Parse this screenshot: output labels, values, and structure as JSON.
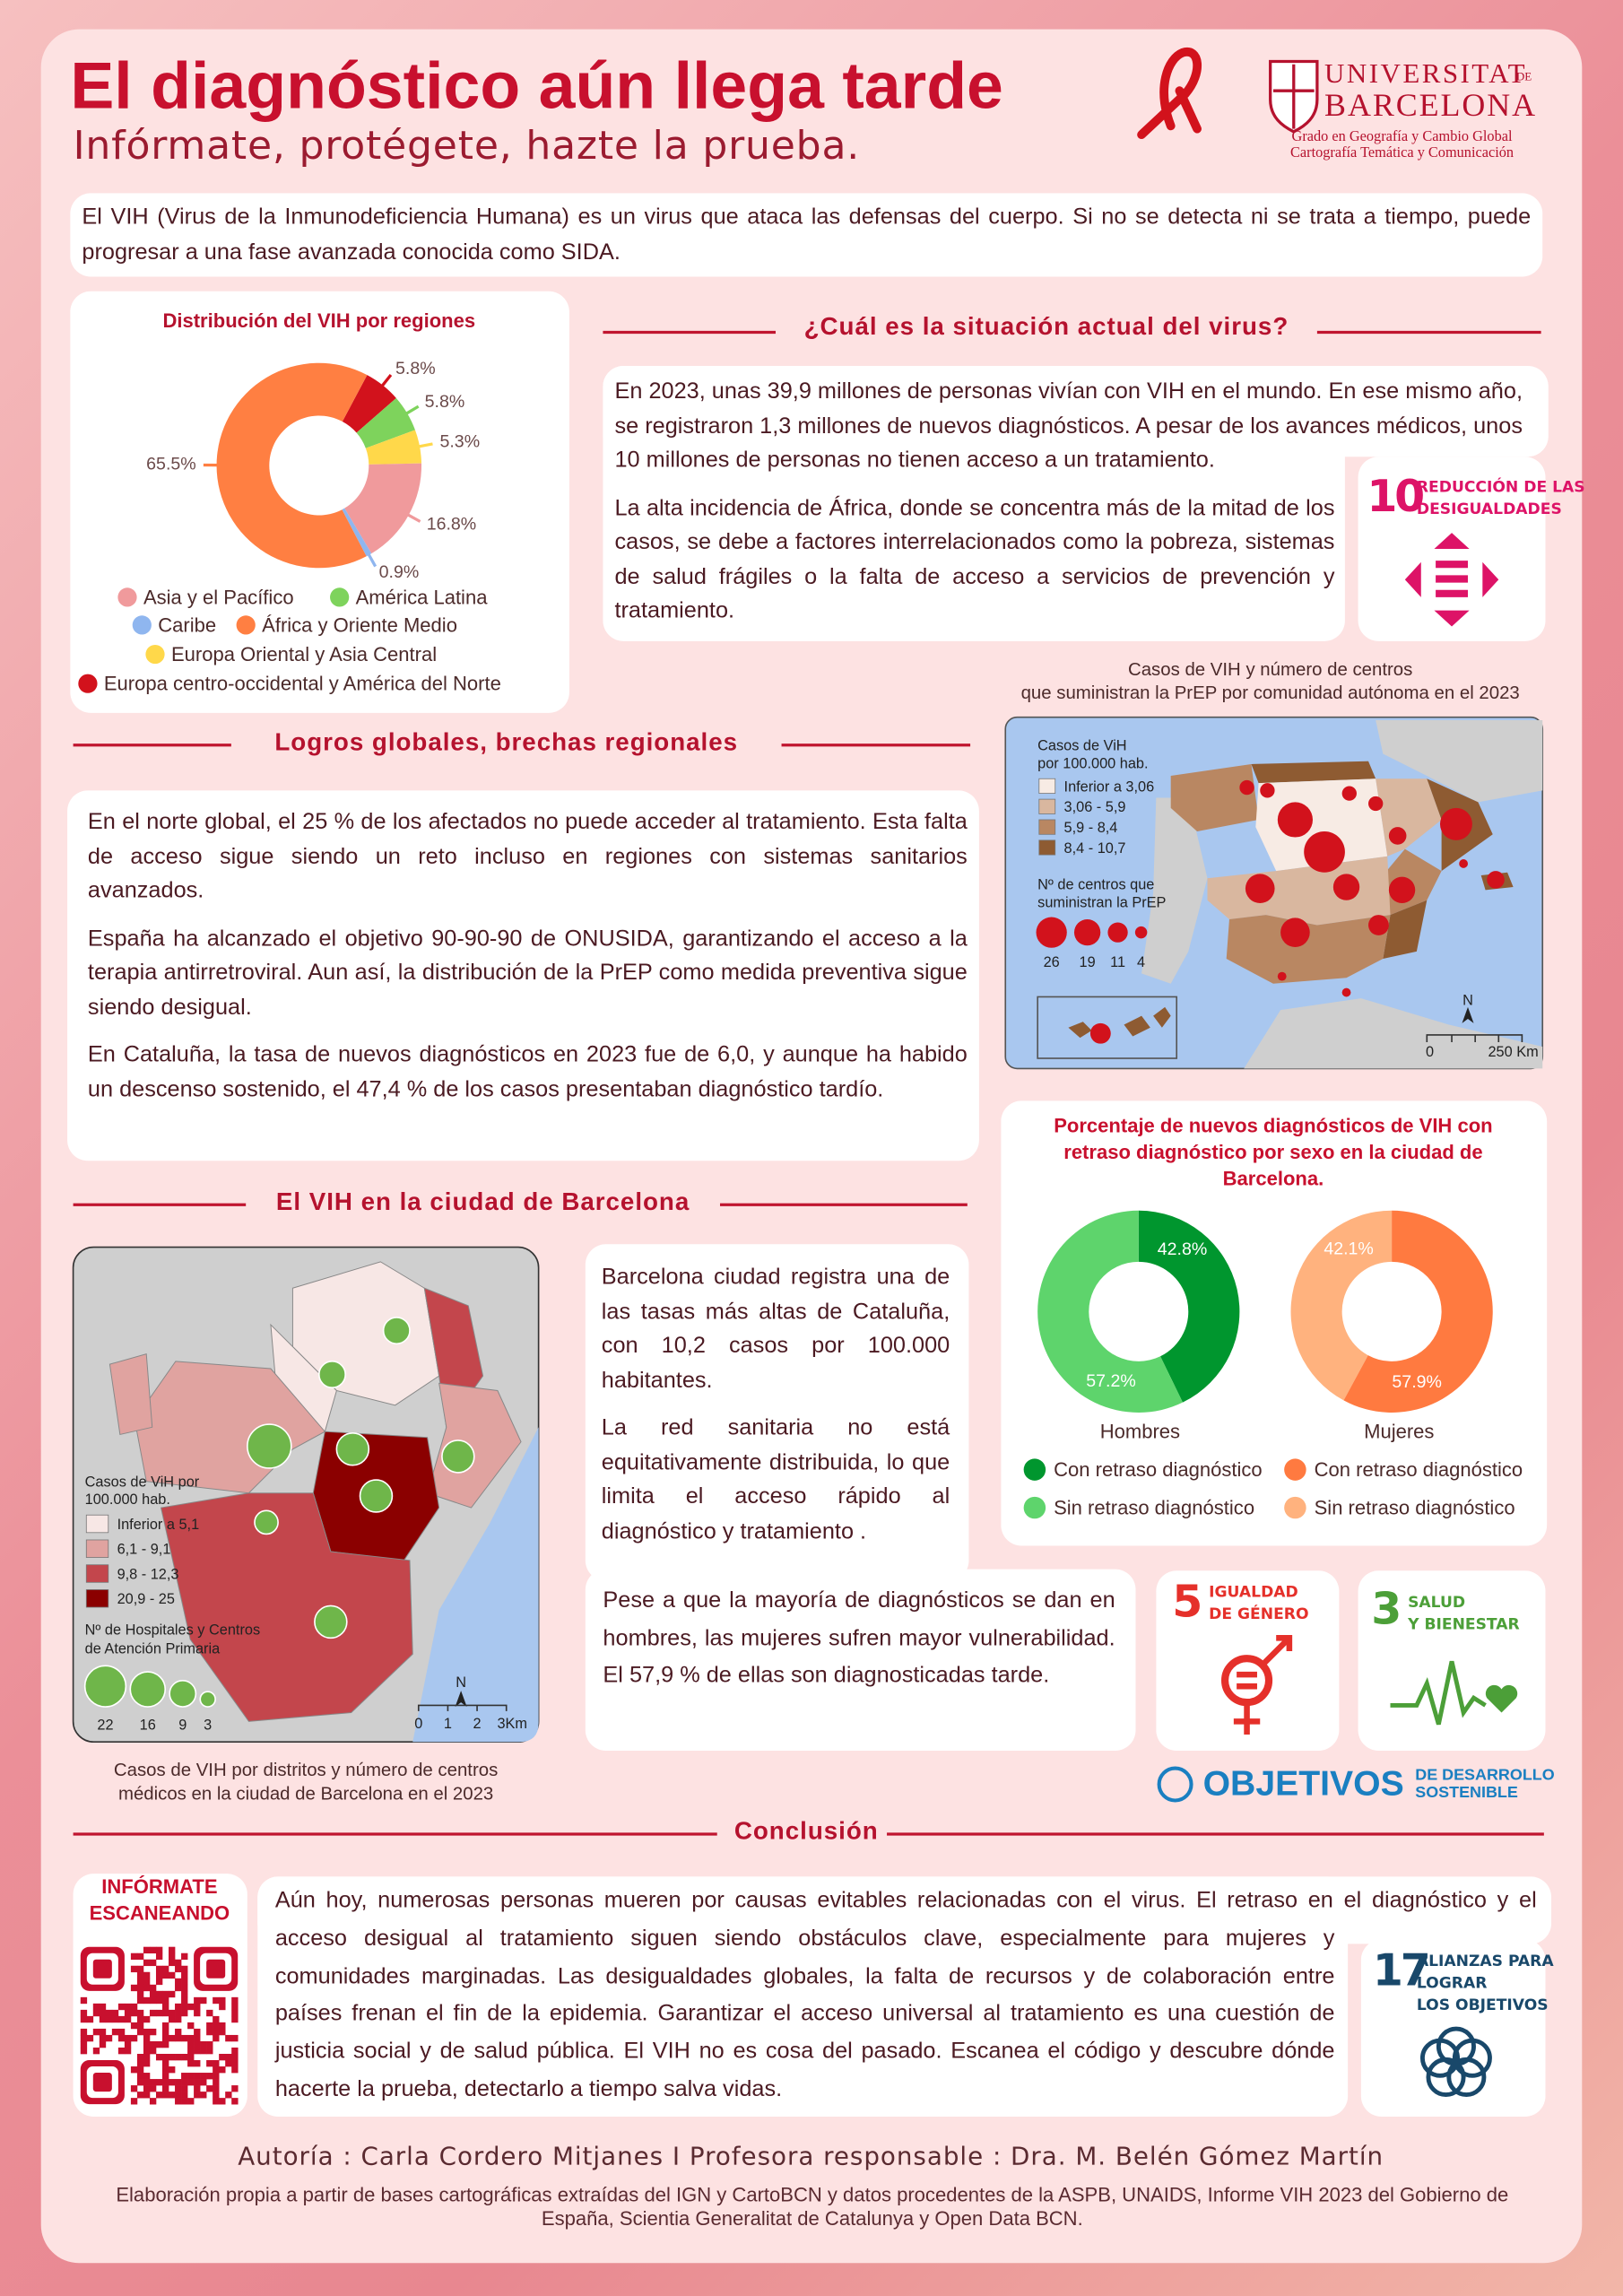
{
  "header": {
    "title": "El diagnóstico aún llega tarde",
    "subtitle": "Infórmate,  protégete, hazte la prueba.",
    "university": [
      "UNIVERSITAT",
      "DE",
      "BARCELONA"
    ],
    "program": [
      "Grado en Geografía y Cambio Global",
      "Cartografía Temática y Comunicación"
    ]
  },
  "intro": "El VIH (Virus de la Inmunodeficiencia Humana) es un virus que ataca las defensas del cuerpo. Si no se detecta ni se trata a tiempo, puede progresar a una fase avanzada conocida como SIDA.",
  "chart_data": [
    {
      "type": "pie",
      "title": "Distribución del VIH por regiones",
      "categories": [
        "Asia y el Pacífico",
        "América Latina",
        "Caribe",
        "África y Oriente Medio",
        "Europa Oriental y Asia Central",
        "Europa centro-occidental y América del Norte"
      ],
      "values": [
        16.8,
        5.8,
        0.9,
        65.5,
        5.3,
        5.8
      ],
      "value_labels": [
        "16.8%",
        "5.8%",
        "0.9%",
        "65.5%",
        "5.3%",
        "5.8%"
      ],
      "colors": [
        "#f09a9c",
        "#7ed35c",
        "#8fb6ef",
        "#ff7f42",
        "#ffd84a",
        "#d2121c"
      ]
    },
    {
      "type": "pie",
      "title": "Porcentaje de nuevos diagnósticos de VIH con retraso diagnóstico por sexo en la ciudad de Barcelona.",
      "label": "Hombres",
      "categories": [
        "Con retraso diagnóstico",
        "Sin retraso diagnóstico"
      ],
      "values": [
        42.8,
        57.2
      ],
      "value_labels": [
        "42.8%",
        "57.2%"
      ],
      "colors": [
        "#00962e",
        "#5ed46c"
      ]
    },
    {
      "type": "pie",
      "label": "Mujeres",
      "categories": [
        "Con retraso diagnóstico",
        "Sin retraso diagnóstico"
      ],
      "values": [
        57.9,
        42.1
      ],
      "value_labels": [
        "57.9%",
        "42.1%"
      ],
      "colors": [
        "#ff7a40",
        "#ffb27e"
      ]
    }
  ],
  "situation": {
    "heading": "¿Cuál es la situación actual del virus?",
    "paragraphs": [
      "En 2023, unas 39,9 millones de personas vivían con VIH en el mundo. En ese mismo año, se registraron 1,3 millones de nuevos diagnósticos. A pesar de los avances médicos, unos 10 millones de personas no tienen acceso a un tratamiento.",
      "La alta incidencia de África, donde se concentra más de la mitad de los casos, se debe a factores interrelacionados como la pobreza, sistemas de salud frágiles o la falta de acceso a servicios de prevención y tratamiento."
    ]
  },
  "spain_map": {
    "caption": [
      "Casos de VIH  y número de centros",
      "que suministran la PrEP  por comunidad autónoma en el 2023"
    ],
    "legend_title": [
      "Casos de ViH",
      "por 100.000 hab."
    ],
    "classes": [
      "Inferior a 3,06",
      "3,06 - 5,9",
      "5,9 - 8,4",
      "8,4 - 10,7"
    ],
    "size_title": [
      "Nº de centros que",
      "suministran la PrEP"
    ],
    "sizes": [
      26,
      19,
      11,
      4
    ],
    "north": "N",
    "scale": [
      "0",
      "250 Km"
    ]
  },
  "global": {
    "heading": "Logros globales, brechas regionales",
    "paragraphs": [
      "En el norte global, el 25 % de los afectados no puede acceder al tratamiento. Esta falta de acceso sigue siendo un reto incluso en regiones con sistemas sanitarios avanzados.",
      "España ha alcanzado el objetivo 90-90-90 de ONUSIDA, garantizando el acceso a la terapia antirretroviral. Aun así, la distribución de la PrEP como medida preventiva sigue siendo desigual.",
      "En Cataluña, la tasa de nuevos diagnósticos en 2023 fue de 6,0, y aunque ha habido un descenso sostenido, el 47,4 % de los casos presentaban diagnóstico tardío."
    ]
  },
  "barcelona": {
    "heading": "El VIH en la ciudad de Barcelona",
    "paragraphs": [
      "Barcelona ciudad registra una de las tasas más altas de Cataluña, con 10,2 casos por 100.000 habitantes.",
      "La red sanitaria no está equitativamente distribuida,  lo que limita  el acceso rápido al diagnóstico y tratamiento .",
      "Pese a que la mayoría de diagnósticos se dan en hombres, las mujeres sufren mayor vulnerabilidad. El 57,9 % de ellas son diagnosticadas tarde."
    ],
    "map": {
      "legend_title": [
        "Casos de ViH por",
        "100.000 hab."
      ],
      "classes": [
        "Inferior a 5,1",
        "6,1 - 9,1",
        "9,8 - 12,3",
        "20,9 - 25"
      ],
      "size_title": [
        "Nº de Hospitales y Centros",
        "de Atención Primaria"
      ],
      "sizes": [
        22,
        16,
        9,
        3
      ],
      "north": "N",
      "scale": [
        "0",
        "1",
        "2",
        "3Km"
      ],
      "caption": [
        "Casos de VIH por distritos y número de centros",
        "médicos en la ciudad de Barcelona en el 2023"
      ]
    }
  },
  "sdg_goals": [
    {
      "number": "10",
      "label": [
        "REDUCCIÓN DE LAS",
        "DESIGUALDADES"
      ]
    },
    {
      "number": "5",
      "label": [
        "IGUALDAD",
        "DE GÉNERO"
      ]
    },
    {
      "number": "3",
      "label": [
        "SALUD",
        "Y BIENESTAR"
      ]
    },
    {
      "number": "17",
      "label": [
        "ALIANZAS PARA",
        "LOGRAR",
        "LOS OBJETIVOS"
      ]
    }
  ],
  "sdg_logo": [
    "OBJETIVOS",
    "DE DESARROLLO",
    "SOSTENIBLE"
  ],
  "conclusion": {
    "heading": "Conclusión",
    "qr_label": [
      "INFÓRMATE",
      "ESCANEANDO"
    ],
    "text": "Aún hoy, numerosas personas mueren por causas evitables relacionadas con el virus. El retraso en el diagnóstico y el acceso desigual al tratamiento siguen siendo obstáculos clave, especialmente para mujeres y comunidades marginadas. Las desigualdades globales, la falta de recursos y de colaboración entre países frenan el fin de la epidemia. Garantizar el acceso universal al tratamiento es una cuestión de justicia social y de salud pública. El VIH no es cosa del pasado. Escanea el código y descubre dónde hacerte la prueba, detectarlo a tiempo salva vidas."
  },
  "footer": {
    "authorship": "Autoría : Carla Cordero Mitjanes  I  Profesora responsable : Dra. M. Belén Gómez Martín",
    "sources": "Elaboración propia a partir de bases cartográficas extraídas del IGN y CartoBCN y datos procedentes de la ASPB, UNAIDS, Informe VIH 2023 del Gobierno de España, Scientia Generalitat de Catalunya y Open Data BCN."
  }
}
